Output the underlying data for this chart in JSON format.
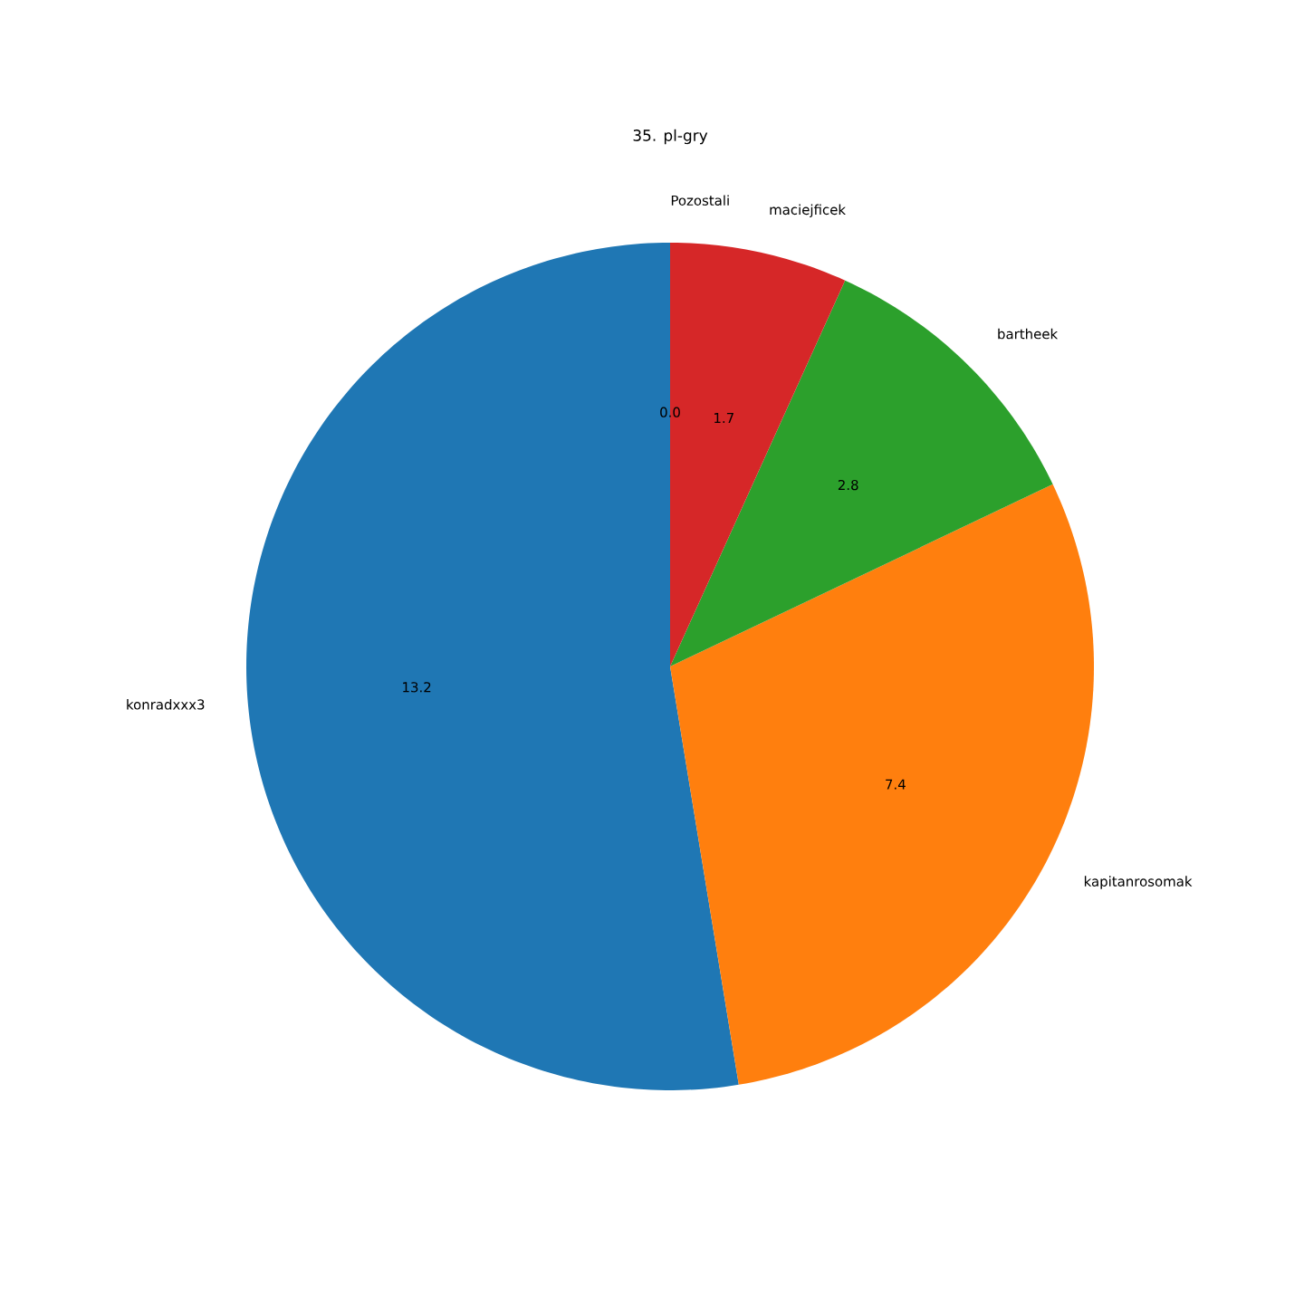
{
  "chart_data": {
    "type": "pie",
    "title": "35. pl-gry",
    "categories": [
      "konradxxx3",
      "kapitanrosomak",
      "bartheek",
      "maciejficek",
      "Pozostali"
    ],
    "values": [
      13.2,
      7.4,
      2.8,
      1.7,
      0.0
    ],
    "colors": [
      "#1f77b4",
      "#ff7f0e",
      "#2ca02c",
      "#d62728",
      "#9467bd"
    ],
    "value_labels": [
      "13.2",
      "7.4",
      "2.8",
      "1.7",
      "0.0"
    ]
  }
}
